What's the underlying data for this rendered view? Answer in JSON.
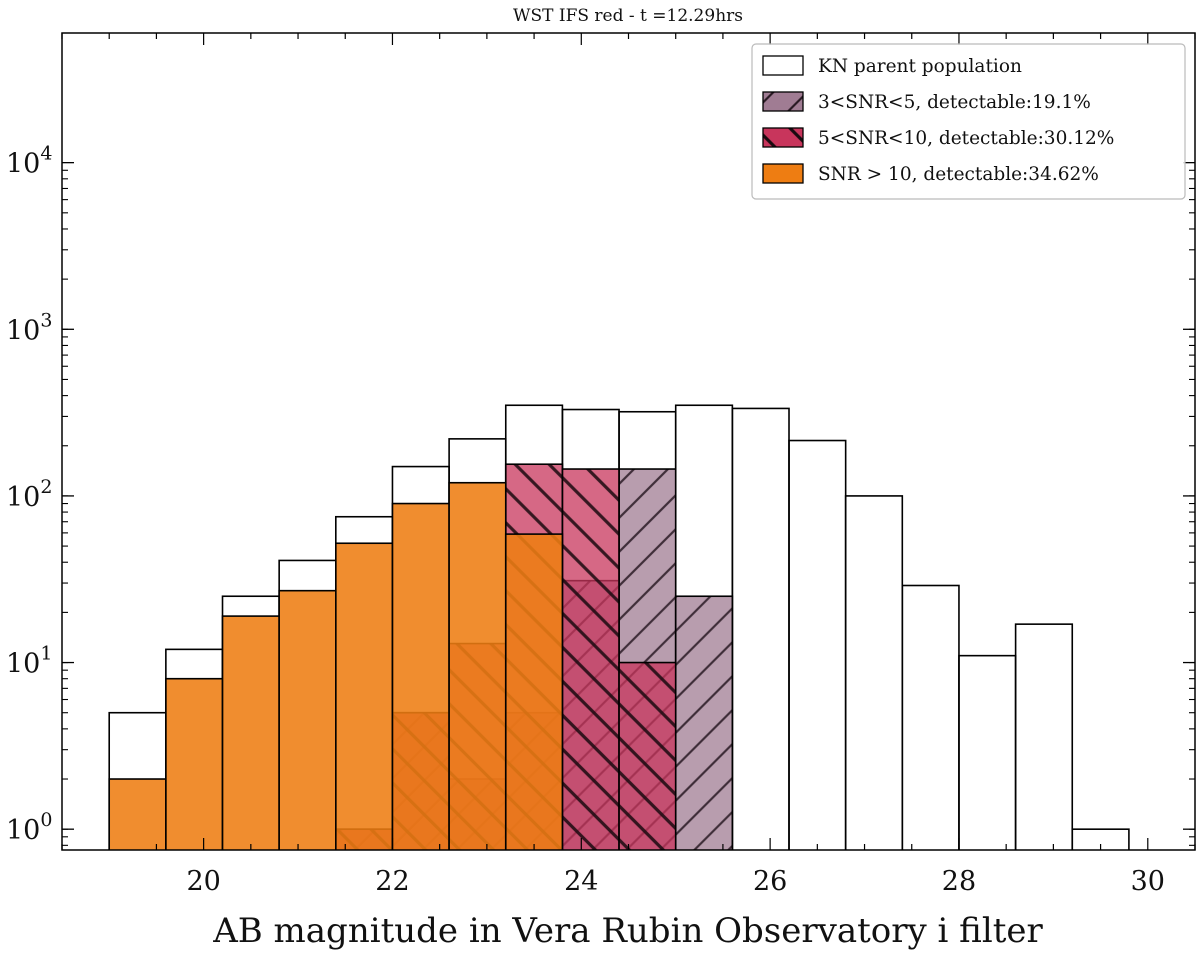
{
  "chart_data": {
    "type": "bar",
    "title": "WST IFS red - t =12.29hrs",
    "xlabel": "AB magnitude in Vera Rubin Observatory i filter",
    "ylabel": "",
    "yscale": "log",
    "xlim": [
      18.5,
      30.5
    ],
    "ylim": [
      0.75,
      60000
    ],
    "bin_edges": [
      19.0,
      19.6,
      20.2,
      20.8,
      21.4,
      22.0,
      22.6,
      23.2,
      23.8,
      24.4,
      25.0,
      25.6,
      26.2,
      26.8,
      27.4,
      28.0,
      28.6,
      29.2,
      29.8
    ],
    "xticks": [
      20,
      22,
      24,
      26,
      28,
      30
    ],
    "xtick_labels": [
      "20",
      "22",
      "24",
      "26",
      "28",
      "30"
    ],
    "yticks": [
      1,
      10,
      100,
      1000,
      10000
    ],
    "ytick_labels": [
      {
        "base": "10",
        "exp": "0"
      },
      {
        "base": "10",
        "exp": "1"
      },
      {
        "base": "10",
        "exp": "2"
      },
      {
        "base": "10",
        "exp": "3"
      },
      {
        "base": "10",
        "exp": "4"
      }
    ],
    "series": [
      {
        "name": "KN parent population",
        "style": "outline",
        "values": [
          5,
          12,
          25,
          41,
          75,
          150,
          220,
          350,
          330,
          320,
          350,
          335,
          215,
          100,
          29,
          11,
          17,
          1,
          0
        ]
      },
      {
        "name": "3<SNR<5, detectable:19.1%",
        "style": "hatch-back",
        "color": "#a07c93",
        "values": [
          0,
          0,
          0,
          0,
          1,
          5,
          2,
          5,
          31,
          145,
          25,
          0,
          0,
          0,
          0,
          0,
          0,
          0,
          0
        ]
      },
      {
        "name": "5<SNR<10, detectable:30.12%",
        "style": "hatch-fwd",
        "color": "#c8355c",
        "values": [
          0,
          0,
          0,
          0,
          1,
          5,
          13,
          155,
          145,
          10,
          0,
          0,
          0,
          0,
          0,
          0,
          0,
          0,
          0
        ]
      },
      {
        "name": "SNR > 10, detectable:34.62%",
        "style": "solid",
        "color": "#ee7d12",
        "values": [
          2,
          8,
          19,
          27,
          52,
          90,
          120,
          59,
          0,
          0,
          0,
          0,
          0,
          0,
          0,
          0,
          0,
          0,
          0
        ]
      }
    ],
    "legend": {
      "position": "top-right",
      "entries": [
        "KN parent population",
        "3<SNR<5, detectable:19.1%",
        "5<SNR<10, detectable:30.12%",
        "SNR > 10, detectable:34.62%"
      ]
    }
  }
}
